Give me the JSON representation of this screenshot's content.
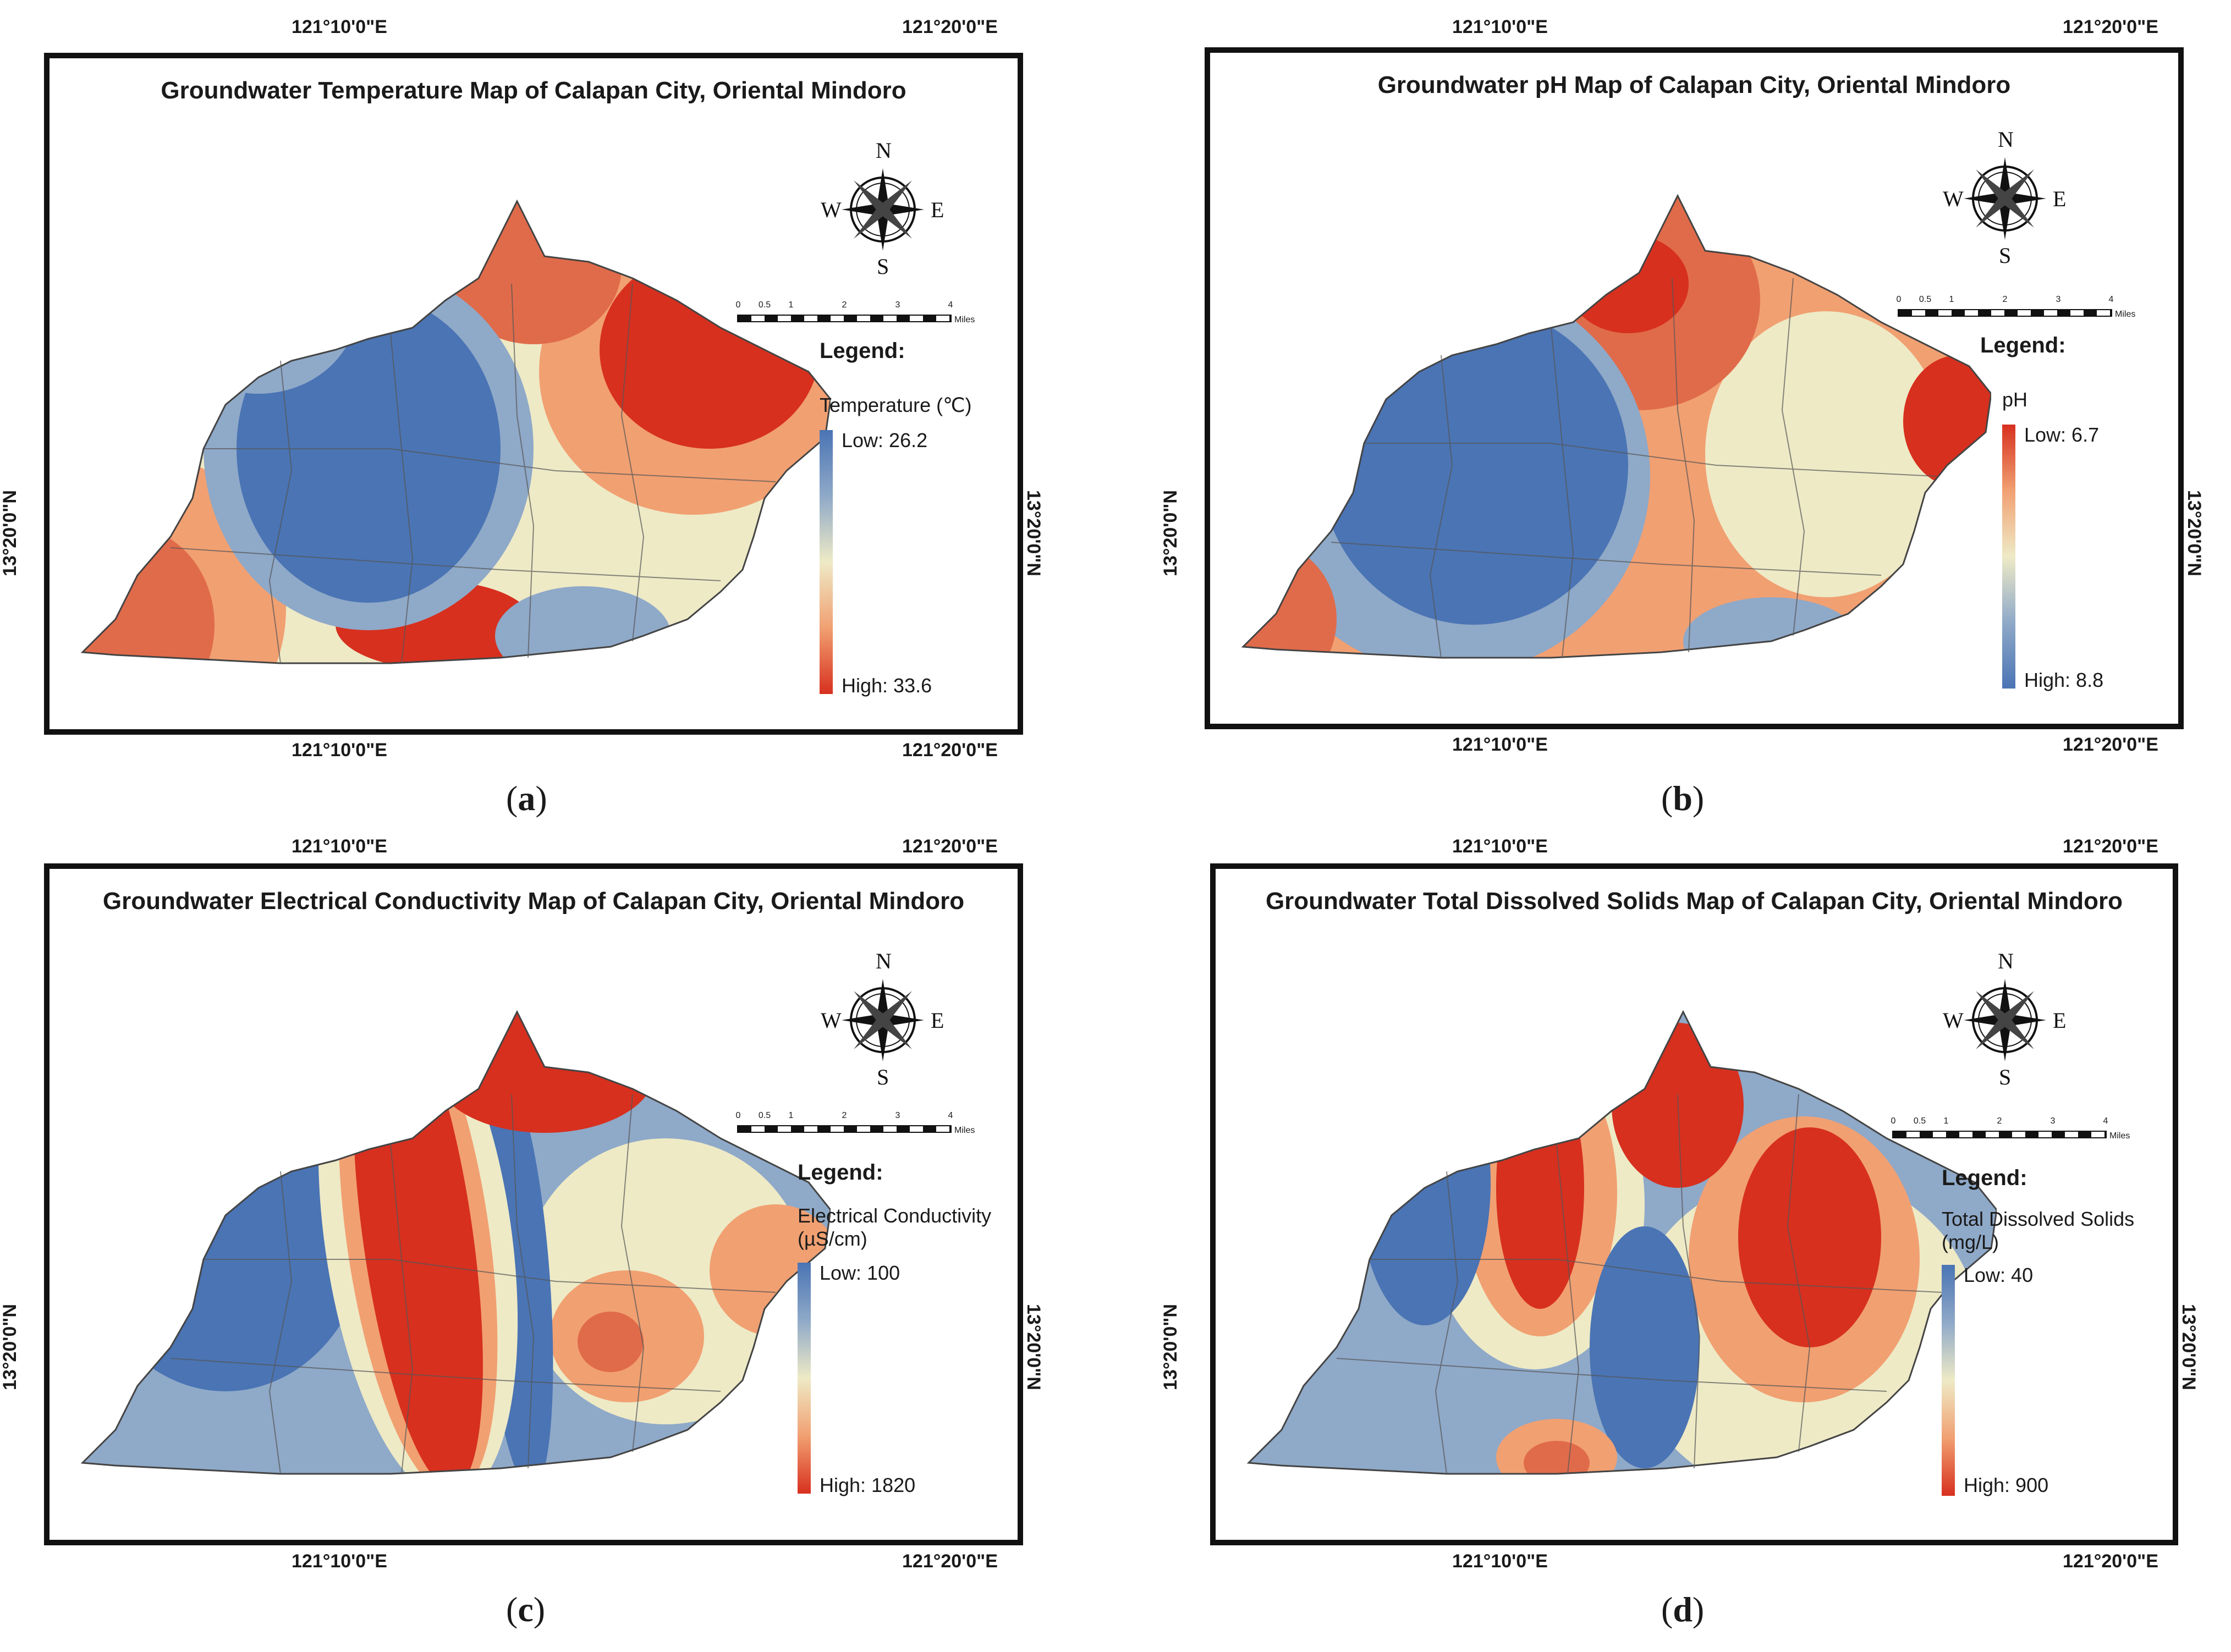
{
  "panels": [
    {
      "id": "a",
      "title": "Groundwater Temperature Map of Calapan City, Oriental Mindoro",
      "legend": {
        "title": "Legend:",
        "variable": "Temperature (℃)",
        "low": "Low: 26.2",
        "high": "High: 33.6",
        "gradient": "low-blue"
      },
      "caption": "a"
    },
    {
      "id": "b",
      "title": "Groundwater pH Map of Calapan City, Oriental Mindoro",
      "legend": {
        "title": "Legend:",
        "variable": "pH",
        "low": "Low: 6.7",
        "high": "High: 8.8",
        "gradient": "low-red"
      },
      "caption": "b"
    },
    {
      "id": "c",
      "title": "Groundwater Electrical Conductivity Map of Calapan City, Oriental Mindoro",
      "legend": {
        "title": "Legend:",
        "variable": "Electrical Conductivity",
        "variable2": "(µS/cm)",
        "low": "Low: 100",
        "high": "High: 1820",
        "gradient": "low-blue"
      },
      "caption": "c"
    },
    {
      "id": "d",
      "title": "Groundwater Total Dissolved Solids Map of Calapan City, Oriental Mindoro",
      "legend": {
        "title": "Legend:",
        "variable": "Total Dissolved Solids",
        "variable2": "(mg/L)",
        "low": "Low: 40",
        "high": "High: 900",
        "gradient": "low-blue"
      },
      "caption": "d"
    }
  ],
  "coords": {
    "lon1": "121°10'0\"E",
    "lon2": "121°20'0\"E",
    "lat": "13°20'0\"N"
  },
  "compass": {
    "n": "N",
    "s": "S",
    "e": "E",
    "w": "W"
  },
  "scale": {
    "ticks": [
      "0",
      "0.5",
      "1",
      "2",
      "3",
      "4"
    ],
    "unit": "Miles"
  },
  "colors": {
    "blue": "#4a74b4",
    "lightblue": "#8fa9c8",
    "pale": "#eeeac6",
    "orange": "#f1a072",
    "red": "#d7301f"
  }
}
